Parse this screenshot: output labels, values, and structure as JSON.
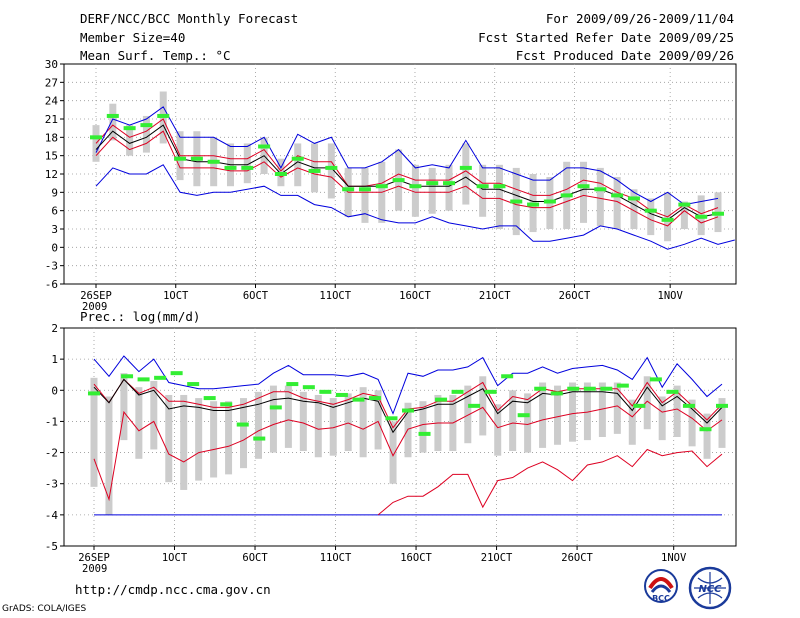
{
  "header": {
    "title": "DERF/NCC/BCC Monthly Forecast",
    "member_size": "Member Size=40",
    "variable": "Mean Surf. Temp.: °C",
    "period": "For 2009/09/26-2009/11/04",
    "started": "Fcst Started Refer Date 2009/09/25",
    "produced": "Fcst Produced Date 2009/09/26"
  },
  "footer": {
    "url": "http://cmdp.ncc.cma.gov.cn",
    "credit": "GrADS: COLA/IGES",
    "logo_left": "BCC",
    "logo_right": "NCC"
  },
  "colors": {
    "grid": "#999999",
    "box": "#cccccc",
    "median": "#000000",
    "quartile": "#dd0022",
    "extreme": "#0000dd",
    "observed": "#33ee33"
  },
  "chart_data": [
    {
      "type": "box",
      "title": "Mean Surf. Temp.: °C",
      "xlabel": "",
      "ylabel": "°C",
      "ylim": [
        -6,
        30
      ],
      "yticks": [
        -6,
        -3,
        0,
        3,
        6,
        9,
        12,
        15,
        18,
        21,
        24,
        27,
        30
      ],
      "xlim": [
        0,
        39
      ],
      "xticks": [
        {
          "day": 0,
          "label": "26SEP"
        },
        {
          "day": 5,
          "label": "1OCT"
        },
        {
          "day": 10,
          "label": "6OCT"
        },
        {
          "day": 15,
          "label": "11OCT"
        },
        {
          "day": 20,
          "label": "16OCT"
        },
        {
          "day": 25,
          "label": "21OCT"
        },
        {
          "day": 30,
          "label": "26OCT"
        },
        {
          "day": 36,
          "label": "1NOV"
        }
      ],
      "year_label": "2009",
      "series": [
        {
          "name": "max",
          "color": "#0000dd",
          "values": [
            15.5,
            21,
            20,
            21,
            23,
            18,
            18,
            18,
            16.5,
            16.5,
            18,
            13,
            18.5,
            17,
            18,
            13,
            13,
            14,
            16,
            13,
            13.5,
            13,
            17.5,
            13,
            13,
            12,
            11,
            11,
            13,
            13,
            12.5,
            11,
            9,
            7.5,
            9,
            7,
            7.5,
            8
          ]
        },
        {
          "name": "q3",
          "color": "#dd0022",
          "values": [
            17,
            20,
            18,
            19,
            21,
            15,
            15,
            15,
            14.5,
            14.5,
            16,
            12.5,
            15,
            14,
            14,
            10,
            10,
            10.5,
            12,
            11,
            11,
            11,
            12.5,
            10.5,
            10.5,
            9.5,
            8.5,
            8.5,
            9.5,
            11,
            10.5,
            9,
            8,
            6,
            5,
            7,
            5.5,
            6.5
          ]
        },
        {
          "name": "median",
          "color": "#000000",
          "values": [
            16,
            19,
            17,
            18,
            20,
            14.5,
            14,
            14,
            13.5,
            13.5,
            15,
            12,
            14,
            13,
            13,
            10,
            10,
            10,
            11,
            10,
            10,
            10,
            11.5,
            9.5,
            9.5,
            8.5,
            7.5,
            7.5,
            8.5,
            9.5,
            9.5,
            8.5,
            7,
            5.5,
            4.5,
            6.5,
            5,
            5.5
          ]
        },
        {
          "name": "q1",
          "color": "#dd0022",
          "values": [
            15,
            18,
            16,
            17,
            19,
            13,
            13,
            13,
            12.5,
            12.5,
            14,
            11.5,
            13,
            12,
            11.5,
            9,
            9,
            9,
            10,
            9,
            9,
            9,
            10,
            8,
            8,
            7,
            6.5,
            6.5,
            7.5,
            8.5,
            8,
            7.5,
            6,
            4.5,
            3.5,
            6,
            4,
            5
          ]
        },
        {
          "name": "min",
          "color": "#0000dd",
          "values": [
            10,
            13,
            12,
            12,
            13.5,
            9,
            8.5,
            9,
            9,
            9.5,
            10,
            8.5,
            8.5,
            7,
            6.5,
            5,
            5.5,
            4.5,
            4,
            4,
            5,
            4,
            3.5,
            3,
            3.5,
            3.5,
            1,
            1,
            1.5,
            2,
            3.5,
            3,
            2,
            1,
            -0.3,
            0.5,
            1.5,
            0.5,
            1.2
          ]
        },
        {
          "name": "box_top",
          "color": "#cccccc",
          "values": [
            20,
            23.5,
            20,
            21.5,
            25.5,
            19,
            19,
            18,
            17,
            17,
            18,
            14.5,
            17,
            17,
            17,
            13,
            13,
            14,
            16,
            13.5,
            13,
            13.5,
            17,
            13.5,
            13.5,
            13,
            12,
            11.5,
            14,
            14,
            13,
            11.5,
            9.5,
            8,
            9,
            7.5,
            8.5,
            9
          ]
        },
        {
          "name": "box_bottom",
          "color": "#cccccc",
          "values": [
            14,
            17.5,
            15,
            15.5,
            17,
            11,
            10,
            10,
            10,
            10.5,
            12,
            10,
            10,
            9,
            8,
            5,
            4,
            4,
            6,
            5,
            5.5,
            6,
            7,
            5,
            3,
            2,
            2.5,
            3,
            3,
            4,
            3.5,
            3,
            3,
            2,
            1,
            3,
            2,
            2.5
          ]
        },
        {
          "name": "observed",
          "color": "#33ee33",
          "values": [
            18,
            21.5,
            19.5,
            20,
            21.5,
            14.5,
            14.5,
            14,
            13,
            13,
            16.5,
            12,
            14.5,
            12.5,
            13,
            9.5,
            9.5,
            10,
            11,
            10,
            10.5,
            10.5,
            13,
            10,
            10,
            7.5,
            7,
            7.5,
            8.5,
            10,
            9.5,
            8.5,
            8,
            6,
            4.5,
            7,
            5,
            5.5
          ]
        }
      ]
    },
    {
      "type": "box",
      "title": "Prec.: log(mm/d)",
      "xlabel": "",
      "ylabel": "log(mm/d)",
      "ylim": [
        -5,
        2
      ],
      "yticks": [
        -5,
        -4,
        -3,
        -2,
        -1,
        0,
        1,
        2
      ],
      "xlim": [
        0,
        39
      ],
      "xticks": [
        {
          "day": 0,
          "label": "26SEP"
        },
        {
          "day": 5,
          "label": "1OCT"
        },
        {
          "day": 10,
          "label": "6OCT"
        },
        {
          "day": 15,
          "label": "11OCT"
        },
        {
          "day": 20,
          "label": "16OCT"
        },
        {
          "day": 25,
          "label": "21OCT"
        },
        {
          "day": 30,
          "label": "26OCT"
        },
        {
          "day": 36,
          "label": "1NOV"
        }
      ],
      "year_label": "2009",
      "series": [
        {
          "name": "max",
          "color": "#0000dd",
          "values": [
            1,
            0.45,
            1.1,
            0.6,
            1,
            0.25,
            0.15,
            0.05,
            0.05,
            0.1,
            0.15,
            0.2,
            0.55,
            0.8,
            0.5,
            0.5,
            0.5,
            0.45,
            0.55,
            0.35,
            -0.75,
            0.55,
            0.45,
            0.65,
            0.65,
            0.75,
            1.05,
            0.15,
            0.55,
            0.55,
            0.75,
            0.55,
            0.7,
            0.75,
            0.8,
            0.65,
            0.35,
            1.05,
            0.1,
            0.85,
            0.35,
            -0.2,
            0.2
          ]
        },
        {
          "name": "q3",
          "color": "#dd0022",
          "values": [
            0.2,
            -0.4,
            0.35,
            -0.1,
            0.1,
            -0.35,
            -0.35,
            -0.45,
            -0.55,
            -0.55,
            -0.45,
            -0.25,
            -0.05,
            -0.05,
            -0.25,
            -0.35,
            -0.45,
            -0.3,
            -0.1,
            -0.2,
            -1.2,
            -0.6,
            -0.55,
            -0.35,
            -0.35,
            -0.05,
            0.25,
            -0.65,
            -0.2,
            -0.3,
            0.05,
            -0.05,
            0.05,
            0.05,
            0.05,
            0.05,
            -0.5,
            0.25,
            -0.4,
            -0.05,
            -0.5,
            -0.95,
            -0.45
          ]
        },
        {
          "name": "median",
          "color": "#000000",
          "values": [
            0.1,
            -0.4,
            0.35,
            -0.15,
            0,
            -0.6,
            -0.5,
            -0.55,
            -0.65,
            -0.65,
            -0.55,
            -0.45,
            -0.3,
            -0.25,
            -0.35,
            -0.4,
            -0.55,
            -0.4,
            -0.25,
            -0.35,
            -1.35,
            -0.7,
            -0.6,
            -0.45,
            -0.45,
            -0.2,
            0.05,
            -0.75,
            -0.35,
            -0.4,
            -0.1,
            -0.15,
            -0.05,
            -0.05,
            -0.05,
            -0.1,
            -0.65,
            0.1,
            -0.5,
            -0.2,
            -0.6,
            -1.05,
            -0.55
          ]
        },
        {
          "name": "q1",
          "color": "#dd0022",
          "values": [
            -2.2,
            -3.5,
            -0.7,
            -1.3,
            -1,
            -2.05,
            -2.3,
            -2,
            -1.9,
            -1.8,
            -1.6,
            -1.3,
            -1.1,
            -0.95,
            -1.05,
            -1.25,
            -1.2,
            -1.05,
            -1.25,
            -1,
            -2.1,
            -1.25,
            -1.1,
            -1.05,
            -1.05,
            -0.8,
            -0.55,
            -1.2,
            -1.05,
            -1.1,
            -0.95,
            -0.85,
            -0.75,
            -0.7,
            -0.6,
            -0.5,
            -0.85,
            -0.35,
            -0.7,
            -0.6,
            -0.9,
            -1.3,
            -0.95
          ]
        },
        {
          "name": "min",
          "color": "#0000dd",
          "values": [
            -4,
            -4,
            -4,
            -4,
            -4,
            -4,
            -4,
            -4,
            -4,
            -4,
            -4,
            -4,
            -4,
            -4,
            -4,
            -4,
            -4,
            -4,
            -4,
            -4,
            -4,
            -4,
            -4,
            -4,
            -4,
            -4,
            -4,
            -4,
            -4,
            -4,
            -4,
            -4,
            -4,
            -4,
            -4,
            -4,
            -4,
            -4,
            -4,
            -4,
            -4,
            -4,
            -4
          ]
        },
        {
          "name": "low",
          "color": "#dd0022",
          "values": [
            null,
            null,
            null,
            null,
            null,
            null,
            null,
            null,
            null,
            null,
            null,
            null,
            null,
            null,
            null,
            null,
            null,
            null,
            null,
            -4,
            -3.6,
            -3.4,
            -3.4,
            -3.1,
            -2.7,
            -2.7,
            -3.75,
            -2.9,
            -2.8,
            -2.5,
            -2.3,
            -2.55,
            -2.9,
            -2.4,
            -2.3,
            -2.1,
            -2.45,
            -1.9,
            -2.1,
            -2,
            -1.95,
            -2.45,
            -2.05
          ]
        },
        {
          "name": "observed",
          "color": "#33ee33",
          "values": [
            -0.1,
            null,
            0.45,
            0.35,
            0.4,
            0.55,
            0.2,
            -0.25,
            -0.45,
            -1.1,
            -1.55,
            -0.55,
            0.2,
            0.1,
            -0.05,
            -0.15,
            -0.3,
            -0.25,
            -0.9,
            -0.65,
            -1.4,
            -0.3,
            -0.05,
            -0.5,
            -0.05,
            0.45,
            -0.8,
            0.05,
            -0.1,
            0.05,
            0.05,
            0.05,
            0.15,
            -0.5,
            0.35,
            -0.05,
            -0.5,
            -1.25,
            -0.5
          ]
        }
      ]
    }
  ]
}
